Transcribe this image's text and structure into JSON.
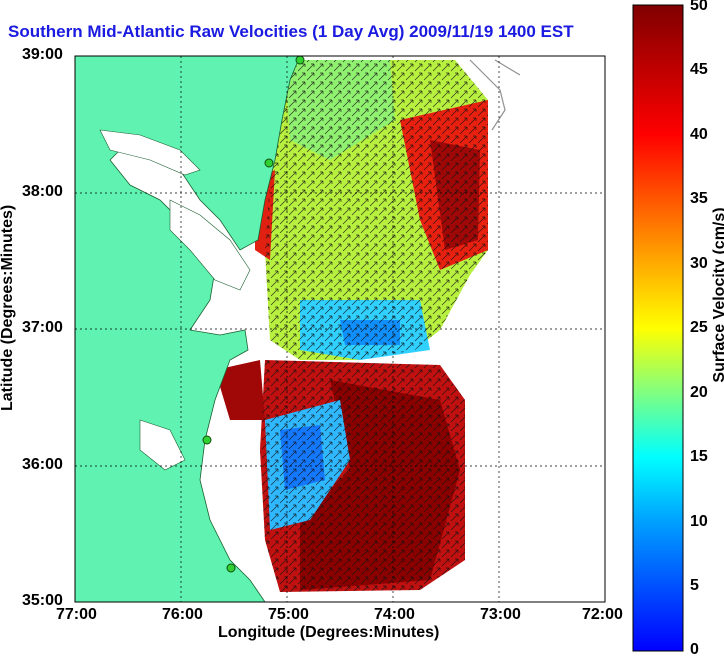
{
  "title": "Southern Mid-Atlantic Raw Velocities (1 Day Avg) 2009/11/19 1400 EST",
  "x_axis": {
    "label": "Longitude (Degrees:Minutes)",
    "ticks": [
      "77:00",
      "76:00",
      "75:00",
      "74:00",
      "73:00",
      "72:00"
    ]
  },
  "y_axis": {
    "label": "Latitude (Degrees:Minutes)",
    "ticks": [
      "39:00",
      "38:00",
      "37:00",
      "36:00",
      "35:00"
    ]
  },
  "colorbar": {
    "label": "Surface Velocity (cm/s)",
    "ticks": [
      "50",
      "45",
      "40",
      "35",
      "30",
      "25",
      "20",
      "15",
      "10",
      "5",
      "0"
    ],
    "min": 0,
    "max": 50,
    "colormap": [
      "#0000ff",
      "#00c8ff",
      "#00ffff",
      "#80ff80",
      "#ffff00",
      "#ff8000",
      "#ff0000",
      "#800000"
    ]
  },
  "colors": {
    "land": "#5ff2b0",
    "title": "#1a1ae0"
  }
}
